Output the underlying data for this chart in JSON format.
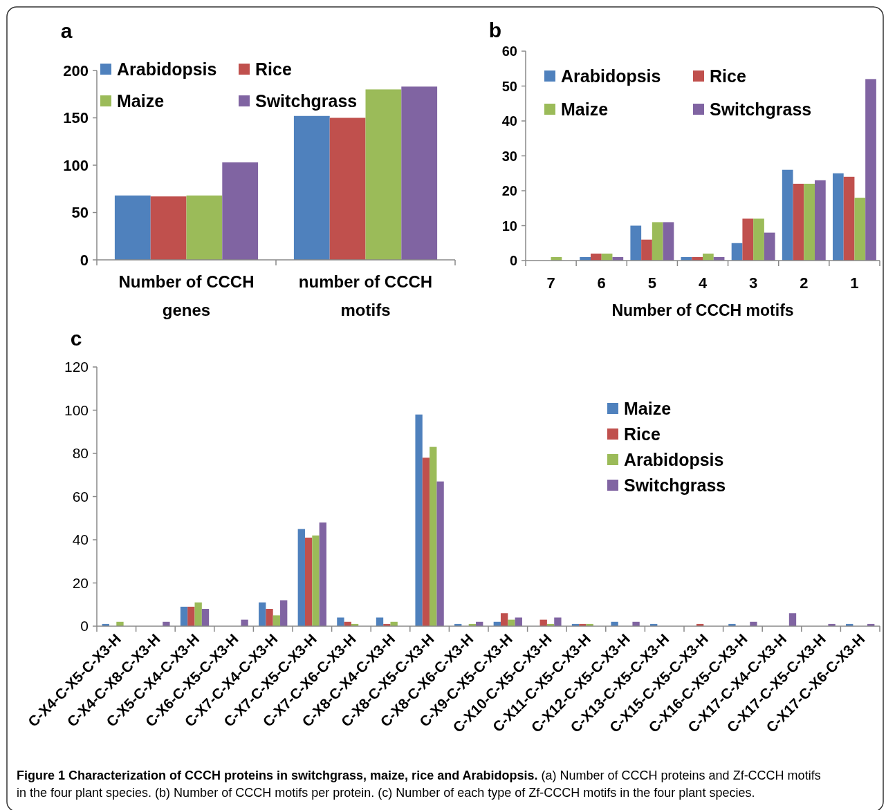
{
  "chart_data": [
    {
      "type": "bar",
      "annotations": [
        "a"
      ],
      "categories": [
        "Number of CCCH genes",
        "number of CCCH motifs"
      ],
      "ylim": [
        0,
        200
      ],
      "yticks": [
        0,
        50,
        100,
        150,
        200
      ],
      "legend": "top",
      "series": [
        {
          "name": "Arabidopsis",
          "color": "#4f81bd",
          "values": [
            68,
            152
          ]
        },
        {
          "name": "Rice",
          "color": "#c0504d",
          "values": [
            67,
            150
          ]
        },
        {
          "name": "Maize",
          "color": "#9bbb59",
          "values": [
            68,
            180
          ]
        },
        {
          "name": "Switchgrass",
          "color": "#8064a2",
          "values": [
            103,
            183
          ]
        }
      ]
    },
    {
      "type": "bar",
      "annotations": [
        "b"
      ],
      "xlabel": "Number of CCCH motifs",
      "categories": [
        "7",
        "6",
        "5",
        "4",
        "3",
        "2",
        "1"
      ],
      "ylim": [
        0,
        60
      ],
      "yticks": [
        0,
        10,
        20,
        30,
        40,
        50,
        60
      ],
      "legend": "top",
      "series": [
        {
          "name": "Arabidopsis",
          "color": "#4f81bd",
          "values": [
            0,
            1,
            10,
            1,
            5,
            26,
            25
          ]
        },
        {
          "name": "Rice",
          "color": "#c0504d",
          "values": [
            0,
            2,
            6,
            1,
            12,
            22,
            24
          ]
        },
        {
          "name": "Maize",
          "color": "#9bbb59",
          "values": [
            1,
            2,
            11,
            2,
            12,
            22,
            18
          ]
        },
        {
          "name": "Switchgrass",
          "color": "#8064a2",
          "values": [
            0,
            1,
            11,
            1,
            8,
            23,
            52
          ]
        }
      ]
    },
    {
      "type": "bar",
      "annotations": [
        "c",
        "Figure 1 Characterization of CCCH proteins in switchgrass, maize, rice and Arabidopsis.",
        "(a) Number of CCCH proteins and Zf-CCCH motifs in the four plant species. (b) Number of CCCH motifs per protein. (c) Number of each type of Zf-CCCH motifs in the four plant species."
      ],
      "categories": [
        "C-X4-C-X5-C-X3-H",
        "C-X4-C-X8-C-X3-H",
        "C-X5-C-X4-C-X3-H",
        "C-X6-C-X5-C-X3-H",
        "C-X7-C-X4-C-X3-H",
        "C-X7-C-X5-C-X3-H",
        "C-X7-C-X6-C-X3-H",
        "C-X8-C-X4-C-X3-H",
        "C-X8-C-X5-C-X3-H",
        "C-X8-C-X6-C-X3-H",
        "C-X9-C-X5-C-X3-H",
        "C-X10-C-X5-C-X3-H",
        "C-X11-C-X5-C-X3-H",
        "C-X12-C-X5-C-X3-H",
        "C-X13-C-X5-C-X3-H",
        "C-X15-C-X5-C-X3-H",
        "C-X16-C-X5-C-X3-H",
        "C-X17-C-X4-C-X3-H",
        "C-X17-C-X5-C-X3-H",
        "C-X17-C-X6-C-X3-H"
      ],
      "ylim": [
        0,
        120
      ],
      "yticks": [
        0,
        20,
        40,
        60,
        80,
        100,
        120
      ],
      "legend": "right",
      "series": [
        {
          "name": "Maize",
          "color": "#4f81bd",
          "values": [
            1,
            0,
            9,
            0,
            11,
            45,
            4,
            4,
            98,
            1,
            2,
            0,
            1,
            2,
            1,
            0,
            1,
            0,
            0,
            1
          ]
        },
        {
          "name": "Rice",
          "color": "#c0504d",
          "values": [
            0,
            0,
            9,
            0,
            8,
            41,
            2,
            1,
            78,
            0,
            6,
            3,
            1,
            0,
            0,
            1,
            0,
            0,
            0,
            0
          ]
        },
        {
          "name": "Arabidopsis",
          "color": "#9bbb59",
          "values": [
            2,
            0,
            11,
            0,
            5,
            42,
            1,
            2,
            83,
            1,
            3,
            1,
            1,
            0,
            0,
            0,
            0,
            0,
            0,
            0
          ]
        },
        {
          "name": "Switchgrass",
          "color": "#8064a2",
          "values": [
            0,
            2,
            8,
            3,
            12,
            48,
            0,
            0,
            67,
            2,
            4,
            4,
            0,
            2,
            0,
            0,
            2,
            6,
            1,
            1
          ]
        }
      ]
    }
  ]
}
